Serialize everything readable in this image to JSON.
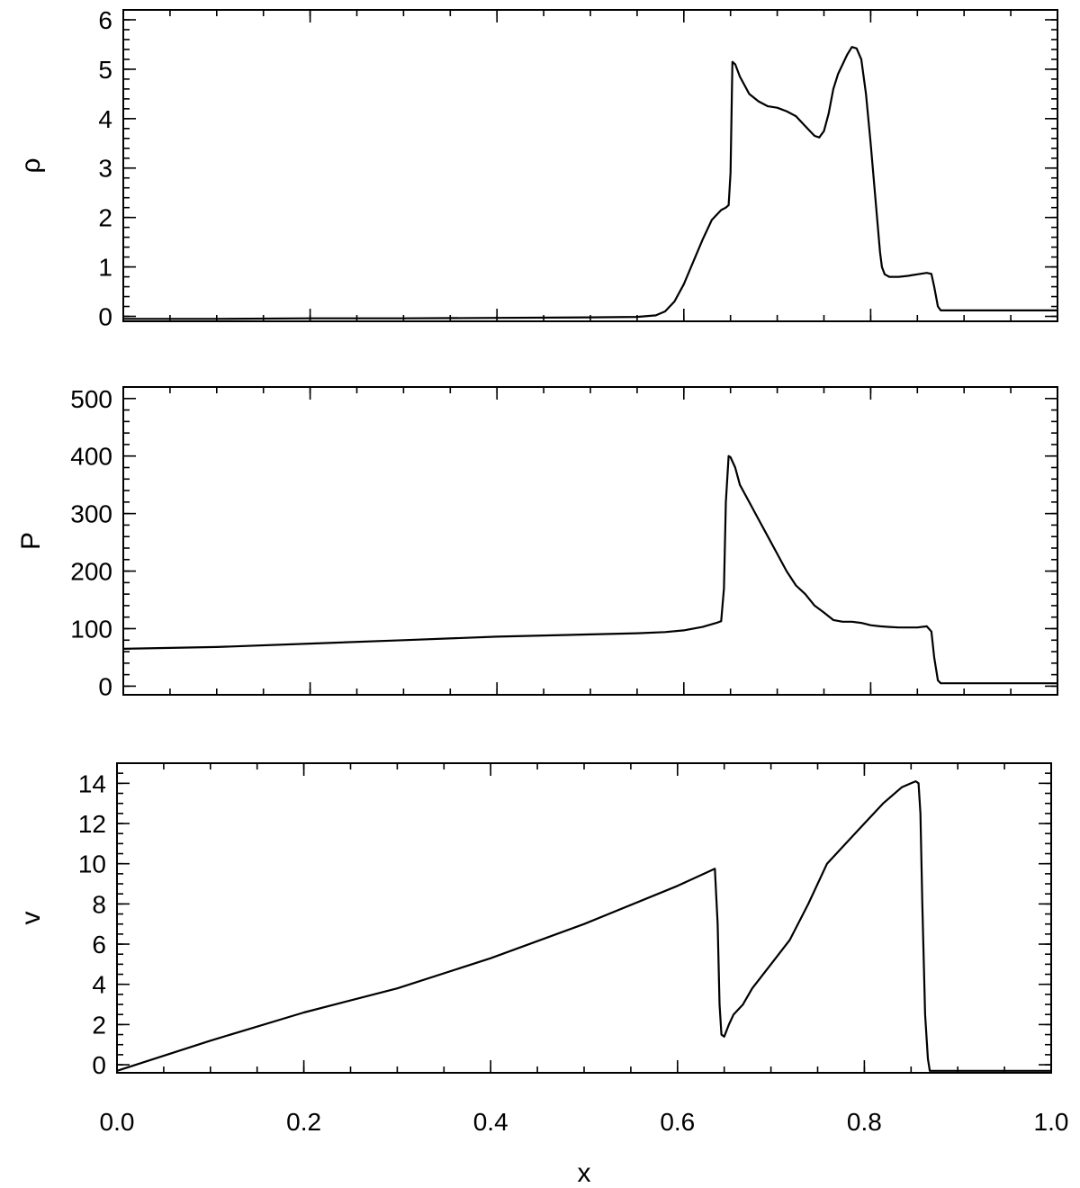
{
  "chart_data": [
    {
      "type": "line",
      "ylabel": "ρ",
      "xlabel": "",
      "xlim": [
        0,
        1
      ],
      "ylim": [
        -0.1,
        6.2
      ],
      "grid": false,
      "yticks": [
        0,
        1,
        2,
        3,
        4,
        5,
        6
      ],
      "yminor_step": 0.2,
      "xticks": [
        0,
        0.2,
        0.4,
        0.6,
        0.8,
        1.0
      ],
      "xminor_step": 0.05,
      "show_xtick_labels": false,
      "series": [
        {
          "x": [
            0,
            0.1,
            0.2,
            0.3,
            0.4,
            0.5,
            0.55,
            0.57,
            0.58,
            0.59,
            0.6,
            0.61,
            0.62,
            0.63,
            0.64,
            0.645,
            0.648,
            0.65,
            0.652,
            0.655,
            0.66,
            0.67,
            0.68,
            0.69,
            0.7,
            0.71,
            0.72,
            0.73,
            0.74,
            0.745,
            0.75,
            0.755,
            0.76,
            0.765,
            0.77,
            0.775,
            0.78,
            0.785,
            0.79,
            0.795,
            0.8,
            0.805,
            0.81,
            0.812,
            0.815,
            0.82,
            0.83,
            0.84,
            0.85,
            0.86,
            0.865,
            0.868,
            0.872,
            0.875,
            0.88,
            0.9,
            1.0
          ],
          "y": [
            -0.05,
            -0.05,
            -0.04,
            -0.04,
            -0.03,
            -0.02,
            -0.01,
            0.02,
            0.1,
            0.3,
            0.65,
            1.1,
            1.55,
            1.95,
            2.15,
            2.2,
            2.25,
            2.9,
            5.15,
            5.1,
            4.85,
            4.5,
            4.35,
            4.25,
            4.22,
            4.15,
            4.05,
            3.85,
            3.65,
            3.62,
            3.75,
            4.1,
            4.6,
            4.9,
            5.1,
            5.3,
            5.45,
            5.42,
            5.2,
            4.5,
            3.5,
            2.4,
            1.3,
            1.0,
            0.85,
            0.8,
            0.8,
            0.82,
            0.85,
            0.88,
            0.86,
            0.6,
            0.2,
            0.12,
            0.12,
            0.12,
            0.12
          ]
        }
      ]
    },
    {
      "type": "line",
      "ylabel": "P",
      "xlabel": "",
      "xlim": [
        0,
        1
      ],
      "ylim": [
        -15,
        520
      ],
      "grid": false,
      "yticks": [
        0,
        100,
        200,
        300,
        400,
        500
      ],
      "yminor_step": 20,
      "xticks": [
        0,
        0.2,
        0.4,
        0.6,
        0.8,
        1.0
      ],
      "xminor_step": 0.05,
      "show_xtick_labels": false,
      "series": [
        {
          "x": [
            0,
            0.1,
            0.2,
            0.3,
            0.4,
            0.5,
            0.55,
            0.58,
            0.6,
            0.62,
            0.635,
            0.64,
            0.643,
            0.645,
            0.648,
            0.65,
            0.655,
            0.66,
            0.67,
            0.68,
            0.69,
            0.7,
            0.71,
            0.72,
            0.73,
            0.74,
            0.75,
            0.76,
            0.77,
            0.78,
            0.79,
            0.8,
            0.81,
            0.82,
            0.83,
            0.84,
            0.85,
            0.86,
            0.865,
            0.868,
            0.872,
            0.875,
            0.88,
            0.9,
            1.0
          ],
          "y": [
            65,
            68,
            74,
            80,
            86,
            90,
            92,
            94,
            97,
            103,
            110,
            113,
            170,
            320,
            400,
            398,
            380,
            350,
            320,
            290,
            260,
            230,
            200,
            175,
            160,
            140,
            128,
            115,
            112,
            112,
            110,
            106,
            104,
            103,
            102,
            102,
            102,
            104,
            95,
            50,
            10,
            5,
            5,
            5,
            5
          ]
        }
      ]
    },
    {
      "type": "line",
      "ylabel": "v",
      "xlabel": "x",
      "xlim": [
        0,
        1
      ],
      "ylim": [
        -0.4,
        15.0
      ],
      "grid": false,
      "yticks": [
        0,
        2,
        4,
        6,
        8,
        10,
        12,
        14
      ],
      "yminor_step": 0.5,
      "xticks": [
        0,
        0.2,
        0.4,
        0.6,
        0.8,
        1.0
      ],
      "xtick_labels": [
        "0.0",
        "0.2",
        "0.4",
        "0.6",
        "0.8",
        "1.0"
      ],
      "xminor_step": 0.05,
      "show_xtick_labels": true,
      "series": [
        {
          "x": [
            0,
            0.1,
            0.2,
            0.3,
            0.4,
            0.5,
            0.6,
            0.64,
            0.643,
            0.645,
            0.647,
            0.65,
            0.655,
            0.66,
            0.67,
            0.68,
            0.7,
            0.72,
            0.74,
            0.76,
            0.77,
            0.78,
            0.8,
            0.82,
            0.84,
            0.85,
            0.855,
            0.858,
            0.86,
            0.862,
            0.865,
            0.868,
            0.87,
            0.875,
            0.9,
            1.0
          ],
          "y": [
            -0.3,
            1.2,
            2.6,
            3.8,
            5.3,
            7.0,
            8.9,
            9.75,
            7.0,
            3.0,
            1.5,
            1.4,
            2.0,
            2.5,
            3.0,
            3.8,
            5.0,
            6.2,
            8.0,
            10.0,
            10.5,
            11.0,
            12.0,
            13.0,
            13.8,
            14.0,
            14.1,
            14.0,
            12.5,
            8.0,
            2.5,
            0.3,
            -0.3,
            -0.3,
            -0.3,
            -0.3
          ]
        }
      ]
    }
  ]
}
